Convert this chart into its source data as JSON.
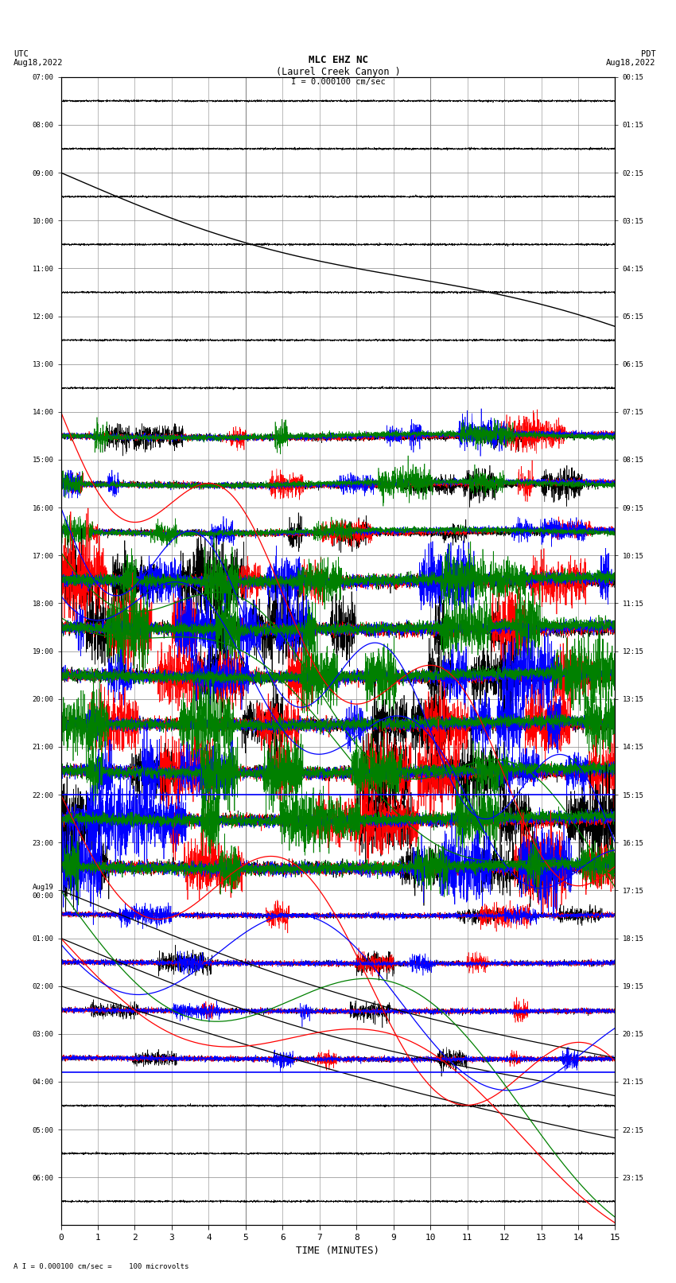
{
  "title_line1": "MLC EHZ NC",
  "title_line2": "(Laurel Creek Canyon )",
  "scale_label": "I = 0.000100 cm/sec",
  "bottom_label": "A I = 0.000100 cm/sec =    100 microvolts",
  "left_label_line1": "UTC",
  "left_label_line2": "Aug18,2022",
  "right_label_line1": "PDT",
  "right_label_line2": "Aug18,2022",
  "xlabel": "TIME (MINUTES)",
  "left_yticks": [
    "07:00",
    "08:00",
    "09:00",
    "10:00",
    "11:00",
    "12:00",
    "13:00",
    "14:00",
    "15:00",
    "16:00",
    "17:00",
    "18:00",
    "19:00",
    "20:00",
    "21:00",
    "22:00",
    "23:00",
    "Aug19\n00:00",
    "01:00",
    "02:00",
    "03:00",
    "04:00",
    "05:00",
    "06:00"
  ],
  "right_yticks": [
    "00:15",
    "01:15",
    "02:15",
    "03:15",
    "04:15",
    "05:15",
    "06:15",
    "07:15",
    "08:15",
    "09:15",
    "10:15",
    "11:15",
    "12:15",
    "13:15",
    "14:15",
    "15:15",
    "16:15",
    "17:15",
    "18:15",
    "19:15",
    "20:15",
    "21:15",
    "22:15",
    "23:15"
  ],
  "xmin": 0,
  "xmax": 15,
  "n_rows": 24,
  "bg_color": "#ffffff",
  "grid_color": "#888888",
  "trace_colors": [
    "black",
    "red",
    "blue",
    "green"
  ]
}
